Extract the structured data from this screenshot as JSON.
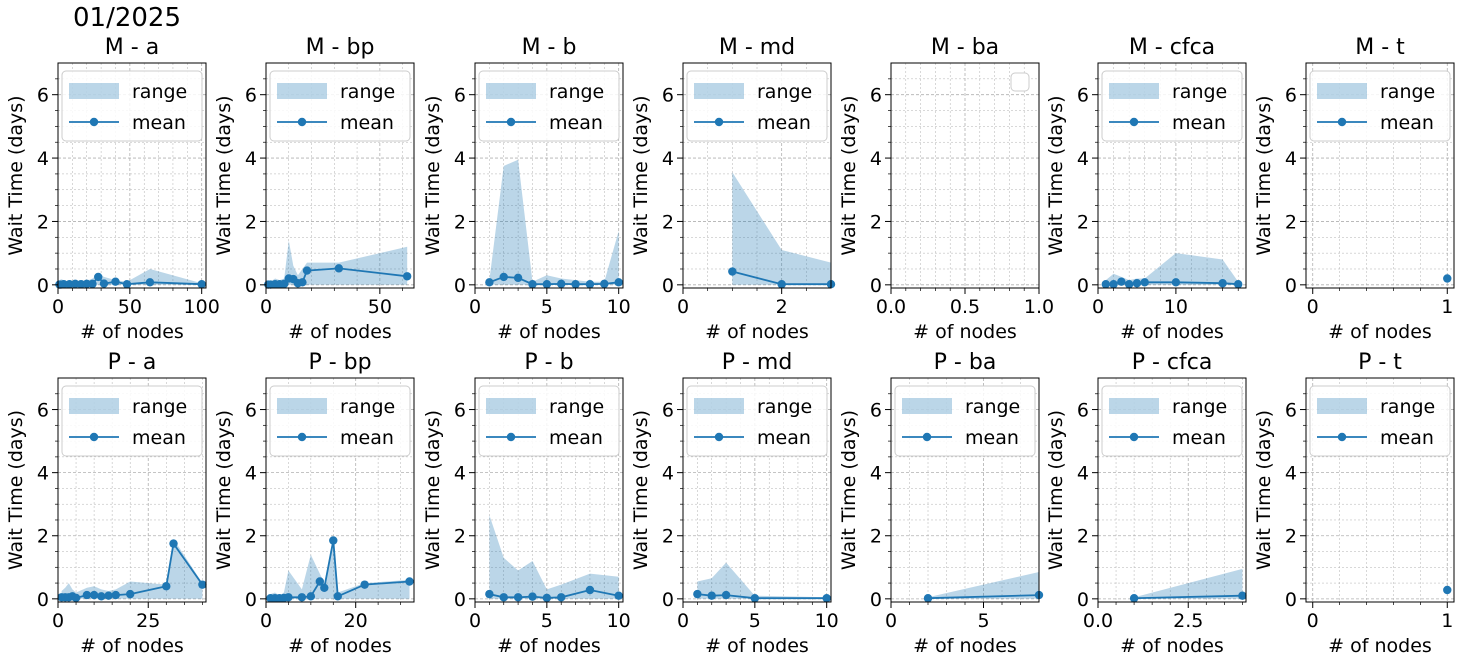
{
  "figure": {
    "suptitle": "01/2025"
  },
  "style": {
    "series_color": "#1f77b4",
    "band_color": "#1f77b4",
    "band_opacity": 0.3,
    "grid_color": "#b0b0b0"
  },
  "legend": {
    "range_label": "range",
    "mean_label": "mean"
  },
  "chart_data": [
    {
      "type": "line",
      "title": "M -  a",
      "xlabel": "# of nodes",
      "ylabel": "Wait Time (days)",
      "xlim": [
        0,
        103
      ],
      "ylim": [
        -0.1,
        7
      ],
      "xticks": [
        {
          "v": 0,
          "l": "0"
        },
        {
          "v": 50,
          "l": "50"
        },
        {
          "v": 100,
          "l": "100"
        }
      ],
      "xminor": [
        10,
        20,
        30,
        40,
        60,
        70,
        80,
        90
      ],
      "legend": true,
      "mean": {
        "x": [
          1,
          2,
          4,
          8,
          12,
          16,
          20,
          24,
          28,
          32,
          40,
          48,
          64,
          100
        ],
        "y": [
          0.01,
          0.01,
          0.02,
          0.02,
          0.03,
          0.02,
          0.03,
          0.03,
          0.25,
          0.04,
          0.1,
          0.02,
          0.08,
          0.02
        ]
      },
      "range": {
        "x": [
          1,
          2,
          4,
          8,
          12,
          16,
          20,
          24,
          28,
          32,
          40,
          48,
          64,
          100
        ],
        "lo": [
          0,
          0,
          0,
          0,
          0,
          0,
          0,
          0,
          0,
          0,
          0,
          0,
          0,
          0
        ],
        "hi": [
          0.12,
          0.18,
          0.15,
          0.1,
          0.1,
          0.15,
          0.12,
          0.2,
          0.35,
          0.25,
          0.15,
          0.1,
          0.5,
          0.05
        ]
      }
    },
    {
      "type": "line",
      "title": "M -  bp",
      "xlabel": "# of nodes",
      "ylabel": "Wait Time (days)",
      "xlim": [
        0,
        65
      ],
      "ylim": [
        -0.1,
        7
      ],
      "xticks": [
        {
          "v": 0,
          "l": "0"
        },
        {
          "v": 50,
          "l": "50"
        }
      ],
      "xminor": [
        10,
        20,
        30,
        40,
        60
      ],
      "legend": true,
      "mean": {
        "x": [
          1,
          2,
          4,
          6,
          8,
          10,
          12,
          14,
          16,
          18,
          32,
          62
        ],
        "y": [
          0.01,
          0.01,
          0.02,
          0.02,
          0.03,
          0.2,
          0.18,
          0.05,
          0.08,
          0.45,
          0.52,
          0.27
        ]
      },
      "range": {
        "x": [
          1,
          2,
          4,
          6,
          8,
          10,
          12,
          14,
          16,
          18,
          32,
          62
        ],
        "lo": [
          0,
          0,
          0,
          0,
          0,
          0,
          0,
          0,
          0,
          0,
          0,
          0
        ],
        "hi": [
          0.1,
          0.1,
          0.2,
          0.15,
          0.2,
          1.4,
          0.6,
          0.3,
          0.5,
          0.7,
          0.7,
          1.2
        ]
      }
    },
    {
      "type": "line",
      "title": "M -  b",
      "xlabel": "# of nodes",
      "ylabel": "Wait Time (days)",
      "xlim": [
        0,
        10.3
      ],
      "ylim": [
        -0.1,
        7
      ],
      "xticks": [
        {
          "v": 0,
          "l": "0"
        },
        {
          "v": 5,
          "l": "5"
        },
        {
          "v": 10,
          "l": "10"
        }
      ],
      "xminor": [
        1,
        2,
        3,
        4,
        6,
        7,
        8,
        9
      ],
      "legend": true,
      "mean": {
        "x": [
          1,
          2,
          3,
          4,
          5,
          6,
          7,
          8,
          9,
          10
        ],
        "y": [
          0.08,
          0.25,
          0.22,
          0.02,
          0.02,
          0.03,
          0.02,
          0.02,
          0.03,
          0.08
        ]
      },
      "range": {
        "x": [
          1,
          2,
          3,
          4,
          5,
          6,
          7,
          8,
          9,
          10
        ],
        "lo": [
          0,
          0,
          0,
          0,
          0,
          0,
          0,
          0,
          0,
          0
        ],
        "hi": [
          0.15,
          3.75,
          3.95,
          0.1,
          0.3,
          0.2,
          0.15,
          0.1,
          0.1,
          1.7
        ]
      }
    },
    {
      "type": "line",
      "title": "M -  md",
      "xlabel": "# of nodes",
      "ylabel": "Wait Time (days)",
      "xlim": [
        0,
        3
      ],
      "ylim": [
        -0.1,
        7
      ],
      "xticks": [
        {
          "v": 0,
          "l": "0"
        },
        {
          "v": 2,
          "l": "2"
        }
      ],
      "xminor": [
        0.5,
        1,
        1.5,
        2.5
      ],
      "legend": true,
      "mean": {
        "x": [
          1,
          2,
          3
        ],
        "y": [
          0.42,
          0.02,
          0.02
        ]
      },
      "range": {
        "x": [
          1,
          2,
          3
        ],
        "lo": [
          0,
          0,
          0
        ],
        "hi": [
          3.55,
          1.1,
          0.7
        ]
      }
    },
    {
      "type": "line",
      "title": "M -  ba",
      "xlabel": "# of nodes",
      "ylabel": "Wait Time (days)",
      "xlim": [
        0,
        1
      ],
      "ylim": [
        -0.1,
        7
      ],
      "xticks": [
        {
          "v": 0,
          "l": "0.0"
        },
        {
          "v": 0.5,
          "l": "0.5"
        },
        {
          "v": 1,
          "l": "1.0"
        }
      ],
      "xminor": [
        0.1,
        0.2,
        0.3,
        0.4,
        0.6,
        0.7,
        0.8,
        0.9
      ],
      "legend": false,
      "mean": {
        "x": [],
        "y": []
      },
      "range": {
        "x": [],
        "lo": [],
        "hi": []
      }
    },
    {
      "type": "line",
      "title": "M -  cfca",
      "xlabel": "# of nodes",
      "ylabel": "Wait Time (days)",
      "xlim": [
        0,
        19
      ],
      "ylim": [
        -0.1,
        7
      ],
      "xticks": [
        {
          "v": 0,
          "l": "0"
        },
        {
          "v": 10,
          "l": "10"
        }
      ],
      "xminor": [
        2,
        4,
        6,
        8,
        12,
        14,
        16,
        18
      ],
      "legend": true,
      "mean": {
        "x": [
          1,
          2,
          3,
          4,
          5,
          6,
          10,
          16,
          18
        ],
        "y": [
          0.02,
          0.02,
          0.1,
          0.02,
          0.05,
          0.08,
          0.08,
          0.05,
          0.02
        ]
      },
      "range": {
        "x": [
          1,
          2,
          3,
          4,
          5,
          6,
          10,
          16,
          18
        ],
        "lo": [
          0,
          0,
          0,
          0,
          0,
          0,
          0,
          0,
          0
        ],
        "hi": [
          0.15,
          0.35,
          0.25,
          0.15,
          0.2,
          0.2,
          1.0,
          0.8,
          0.1
        ]
      }
    },
    {
      "type": "line",
      "title": "M -  t",
      "xlabel": "# of nodes",
      "ylabel": "Wait Time (days)",
      "xlim": [
        -0.05,
        1.05
      ],
      "ylim": [
        -0.1,
        7
      ],
      "xticks": [
        {
          "v": 0,
          "l": "0"
        },
        {
          "v": 1,
          "l": "1"
        }
      ],
      "xminor": [
        0.2,
        0.4,
        0.6,
        0.8
      ],
      "legend": true,
      "mean": {
        "x": [
          1
        ],
        "y": [
          0.2
        ]
      },
      "range": {
        "x": [
          1
        ],
        "lo": [
          0
        ],
        "hi": [
          0.2
        ]
      }
    },
    {
      "type": "line",
      "title": "P -  a",
      "xlabel": "# of nodes",
      "ylabel": "Wait Time (days)",
      "xlim": [
        0,
        41
      ],
      "ylim": [
        -0.1,
        7
      ],
      "xticks": [
        {
          "v": 0,
          "l": "0"
        },
        {
          "v": 25,
          "l": "25"
        }
      ],
      "xminor": [
        5,
        10,
        15,
        20,
        30,
        35,
        40
      ],
      "legend": true,
      "mean": {
        "x": [
          1,
          2,
          3,
          4,
          5,
          8,
          10,
          12,
          14,
          16,
          20,
          30,
          32,
          40
        ],
        "y": [
          0.05,
          0.05,
          0.05,
          0.08,
          0.03,
          0.12,
          0.12,
          0.08,
          0.1,
          0.12,
          0.15,
          0.4,
          1.75,
          0.45
        ]
      },
      "range": {
        "x": [
          1,
          2,
          3,
          4,
          5,
          8,
          10,
          12,
          14,
          16,
          20,
          30,
          32,
          40
        ],
        "lo": [
          0,
          0,
          0,
          0,
          0,
          0,
          0,
          0,
          0,
          0,
          0,
          0,
          0,
          0
        ],
        "hi": [
          0.25,
          0.35,
          0.5,
          0.3,
          0.2,
          0.35,
          0.4,
          0.3,
          0.25,
          0.3,
          0.55,
          0.45,
          1.9,
          0.5
        ]
      }
    },
    {
      "type": "line",
      "title": "P -  bp",
      "xlabel": "# of nodes",
      "ylabel": "Wait Time (days)",
      "xlim": [
        0,
        33
      ],
      "ylim": [
        -0.1,
        7
      ],
      "xticks": [
        {
          "v": 0,
          "l": "0"
        },
        {
          "v": 20,
          "l": "20"
        }
      ],
      "xminor": [
        5,
        10,
        15,
        25,
        30
      ],
      "legend": true,
      "mean": {
        "x": [
          1,
          2,
          3,
          4,
          5,
          8,
          10,
          12,
          13,
          15,
          16,
          22,
          32
        ],
        "y": [
          0.02,
          0.02,
          0.02,
          0.03,
          0.05,
          0.05,
          0.08,
          0.55,
          0.35,
          1.85,
          0.08,
          0.45,
          0.55
        ]
      },
      "range": {
        "x": [
          1,
          2,
          3,
          4,
          5,
          8,
          10,
          12,
          13,
          15,
          16,
          22,
          32
        ],
        "lo": [
          0,
          0,
          0,
          0,
          0,
          0,
          0,
          0,
          0,
          0,
          0,
          0,
          0
        ],
        "hi": [
          0.15,
          0.2,
          0.1,
          0.2,
          0.9,
          0.3,
          1.4,
          0.8,
          0.5,
          1.9,
          0.2,
          0.5,
          0.6
        ]
      }
    },
    {
      "type": "line",
      "title": "P -  b",
      "xlabel": "# of nodes",
      "ylabel": "Wait Time (days)",
      "xlim": [
        0,
        10.3
      ],
      "ylim": [
        -0.1,
        7
      ],
      "xticks": [
        {
          "v": 0,
          "l": "0"
        },
        {
          "v": 5,
          "l": "5"
        },
        {
          "v": 10,
          "l": "10"
        }
      ],
      "xminor": [
        1,
        2,
        3,
        4,
        6,
        7,
        8,
        9
      ],
      "legend": true,
      "mean": {
        "x": [
          1,
          2,
          3,
          4,
          5,
          6,
          8,
          10
        ],
        "y": [
          0.15,
          0.05,
          0.05,
          0.07,
          0.03,
          0.05,
          0.28,
          0.1
        ]
      },
      "range": {
        "x": [
          1,
          2,
          3,
          4,
          5,
          6,
          8,
          10
        ],
        "lo": [
          0,
          0,
          0,
          0,
          0,
          0,
          0,
          0
        ],
        "hi": [
          2.65,
          1.3,
          0.9,
          1.2,
          0.3,
          0.45,
          0.8,
          0.7
        ]
      }
    },
    {
      "type": "line",
      "title": "P -  md",
      "xlabel": "# of nodes",
      "ylabel": "Wait Time (days)",
      "xlim": [
        0,
        10.3
      ],
      "ylim": [
        -0.1,
        7
      ],
      "xticks": [
        {
          "v": 0,
          "l": "0"
        },
        {
          "v": 5,
          "l": "5"
        },
        {
          "v": 10,
          "l": "10"
        }
      ],
      "xminor": [
        1,
        2,
        3,
        4,
        6,
        7,
        8,
        9
      ],
      "legend": true,
      "mean": {
        "x": [
          1,
          2,
          3,
          5,
          10
        ],
        "y": [
          0.15,
          0.1,
          0.12,
          0.02,
          0.02
        ]
      },
      "range": {
        "x": [
          1,
          2,
          3,
          5,
          10
        ],
        "lo": [
          0,
          0,
          0,
          0,
          0
        ],
        "hi": [
          0.55,
          0.65,
          1.15,
          0.1,
          0.05
        ]
      }
    },
    {
      "type": "line",
      "title": "P -  ba",
      "xlabel": "# of nodes",
      "ylabel": "Wait Time (days)",
      "xlim": [
        0,
        8
      ],
      "ylim": [
        -0.1,
        7
      ],
      "xticks": [
        {
          "v": 0,
          "l": "0"
        },
        {
          "v": 5,
          "l": "5"
        }
      ],
      "xminor": [
        1,
        2,
        3,
        4,
        6,
        7
      ],
      "legend": true,
      "mean": {
        "x": [
          2,
          8
        ],
        "y": [
          0.02,
          0.12
        ]
      },
      "range": {
        "x": [
          2,
          8
        ],
        "lo": [
          0,
          0
        ],
        "hi": [
          0.05,
          0.85
        ]
      }
    },
    {
      "type": "line",
      "title": "P -  cfca",
      "xlabel": "# of nodes",
      "ylabel": "Wait Time (days)",
      "xlim": [
        0,
        4.1
      ],
      "ylim": [
        -0.1,
        7
      ],
      "xticks": [
        {
          "v": 0,
          "l": "0.0"
        },
        {
          "v": 2.5,
          "l": "2.5"
        }
      ],
      "xminor": [
        0.5,
        1,
        1.5,
        2,
        3,
        3.5,
        4
      ],
      "legend": true,
      "mean": {
        "x": [
          1,
          4
        ],
        "y": [
          0.02,
          0.1
        ]
      },
      "range": {
        "x": [
          1,
          4
        ],
        "lo": [
          0,
          0
        ],
        "hi": [
          0.05,
          0.95
        ]
      }
    },
    {
      "type": "line",
      "title": "P -  t",
      "xlabel": "# of nodes",
      "ylabel": "Wait Time (days)",
      "xlim": [
        -0.05,
        1.05
      ],
      "ylim": [
        -0.1,
        7
      ],
      "xticks": [
        {
          "v": 0,
          "l": "0"
        },
        {
          "v": 1,
          "l": "1"
        }
      ],
      "xminor": [
        0.2,
        0.4,
        0.6,
        0.8
      ],
      "legend": true,
      "mean": {
        "x": [
          1
        ],
        "y": [
          0.28
        ]
      },
      "range": {
        "x": [
          1
        ],
        "lo": [
          0
        ],
        "hi": [
          0.28
        ]
      }
    }
  ]
}
